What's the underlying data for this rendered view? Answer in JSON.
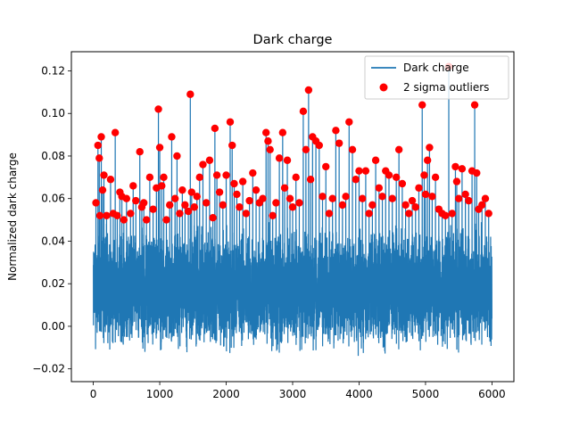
{
  "chart_data": {
    "type": "line",
    "title": "Dark charge",
    "xlabel": "",
    "ylabel": "Normalized dark charge",
    "xlim": [
      -330,
      6330
    ],
    "ylim": [
      -0.026,
      0.129
    ],
    "xticks": [
      0,
      1000,
      2000,
      3000,
      4000,
      5000,
      6000
    ],
    "xtick_labels": [
      "0",
      "1000",
      "2000",
      "3000",
      "4000",
      "5000",
      "6000"
    ],
    "yticks": [
      -0.02,
      0.0,
      0.02,
      0.04,
      0.06,
      0.08,
      0.1,
      0.12
    ],
    "ytick_labels": [
      "−0.02",
      "0.00",
      "0.02",
      "0.04",
      "0.06",
      "0.08",
      "0.10",
      "0.12"
    ],
    "grid": false,
    "legend_position": "top-right",
    "colors": {
      "line": "#1f77b4",
      "outliers": "#ff0000"
    },
    "series": [
      {
        "name": "Dark charge",
        "kind": "line",
        "n_points": 6000,
        "typical_range": [
          -0.01,
          0.045
        ],
        "x_range": [
          0,
          6000
        ]
      },
      {
        "name": "2 sigma outliers",
        "kind": "scatter",
        "points": [
          [
            40,
            0.058
          ],
          [
            70,
            0.085
          ],
          [
            90,
            0.079
          ],
          [
            100,
            0.052
          ],
          [
            120,
            0.089
          ],
          [
            140,
            0.064
          ],
          [
            160,
            0.071
          ],
          [
            200,
            0.052
          ],
          [
            260,
            0.069
          ],
          [
            300,
            0.053
          ],
          [
            330,
            0.091
          ],
          [
            360,
            0.052
          ],
          [
            400,
            0.063
          ],
          [
            430,
            0.061
          ],
          [
            460,
            0.05
          ],
          [
            500,
            0.06
          ],
          [
            560,
            0.053
          ],
          [
            600,
            0.066
          ],
          [
            640,
            0.059
          ],
          [
            700,
            0.082
          ],
          [
            730,
            0.056
          ],
          [
            760,
            0.058
          ],
          [
            800,
            0.05
          ],
          [
            850,
            0.07
          ],
          [
            900,
            0.055
          ],
          [
            950,
            0.065
          ],
          [
            980,
            0.102
          ],
          [
            1000,
            0.084
          ],
          [
            1030,
            0.066
          ],
          [
            1060,
            0.07
          ],
          [
            1100,
            0.05
          ],
          [
            1150,
            0.057
          ],
          [
            1180,
            0.089
          ],
          [
            1230,
            0.06
          ],
          [
            1260,
            0.08
          ],
          [
            1300,
            0.053
          ],
          [
            1340,
            0.064
          ],
          [
            1380,
            0.057
          ],
          [
            1430,
            0.054
          ],
          [
            1460,
            0.109
          ],
          [
            1480,
            0.063
          ],
          [
            1520,
            0.056
          ],
          [
            1560,
            0.061
          ],
          [
            1600,
            0.07
          ],
          [
            1650,
            0.076
          ],
          [
            1700,
            0.058
          ],
          [
            1750,
            0.078
          ],
          [
            1800,
            0.051
          ],
          [
            1830,
            0.093
          ],
          [
            1860,
            0.071
          ],
          [
            1900,
            0.063
          ],
          [
            1950,
            0.057
          ],
          [
            2000,
            0.071
          ],
          [
            2060,
            0.096
          ],
          [
            2090,
            0.085
          ],
          [
            2120,
            0.067
          ],
          [
            2160,
            0.062
          ],
          [
            2200,
            0.056
          ],
          [
            2250,
            0.068
          ],
          [
            2300,
            0.053
          ],
          [
            2350,
            0.059
          ],
          [
            2400,
            0.072
          ],
          [
            2450,
            0.064
          ],
          [
            2500,
            0.058
          ],
          [
            2550,
            0.06
          ],
          [
            2600,
            0.091
          ],
          [
            2630,
            0.087
          ],
          [
            2660,
            0.083
          ],
          [
            2700,
            0.052
          ],
          [
            2750,
            0.058
          ],
          [
            2800,
            0.079
          ],
          [
            2850,
            0.091
          ],
          [
            2880,
            0.065
          ],
          [
            2920,
            0.078
          ],
          [
            2960,
            0.06
          ],
          [
            3000,
            0.056
          ],
          [
            3050,
            0.07
          ],
          [
            3100,
            0.058
          ],
          [
            3160,
            0.101
          ],
          [
            3200,
            0.083
          ],
          [
            3240,
            0.111
          ],
          [
            3270,
            0.069
          ],
          [
            3300,
            0.089
          ],
          [
            3350,
            0.087
          ],
          [
            3400,
            0.085
          ],
          [
            3450,
            0.061
          ],
          [
            3500,
            0.075
          ],
          [
            3550,
            0.053
          ],
          [
            3600,
            0.06
          ],
          [
            3650,
            0.092
          ],
          [
            3700,
            0.086
          ],
          [
            3750,
            0.057
          ],
          [
            3800,
            0.061
          ],
          [
            3850,
            0.096
          ],
          [
            3900,
            0.083
          ],
          [
            3950,
            0.069
          ],
          [
            4000,
            0.073
          ],
          [
            4050,
            0.06
          ],
          [
            4100,
            0.073
          ],
          [
            4150,
            0.053
          ],
          [
            4200,
            0.057
          ],
          [
            4250,
            0.078
          ],
          [
            4300,
            0.065
          ],
          [
            4350,
            0.061
          ],
          [
            4400,
            0.073
          ],
          [
            4450,
            0.071
          ],
          [
            4500,
            0.06
          ],
          [
            4560,
            0.07
          ],
          [
            4600,
            0.083
          ],
          [
            4650,
            0.067
          ],
          [
            4700,
            0.057
          ],
          [
            4750,
            0.053
          ],
          [
            4800,
            0.059
          ],
          [
            4850,
            0.056
          ],
          [
            4900,
            0.065
          ],
          [
            4950,
            0.104
          ],
          [
            4980,
            0.071
          ],
          [
            5000,
            0.062
          ],
          [
            5030,
            0.078
          ],
          [
            5060,
            0.084
          ],
          [
            5100,
            0.061
          ],
          [
            5150,
            0.07
          ],
          [
            5200,
            0.055
          ],
          [
            5250,
            0.053
          ],
          [
            5300,
            0.052
          ],
          [
            5350,
            0.122
          ],
          [
            5400,
            0.053
          ],
          [
            5450,
            0.075
          ],
          [
            5470,
            0.068
          ],
          [
            5500,
            0.06
          ],
          [
            5550,
            0.074
          ],
          [
            5600,
            0.062
          ],
          [
            5650,
            0.059
          ],
          [
            5700,
            0.073
          ],
          [
            5740,
            0.104
          ],
          [
            5770,
            0.072
          ],
          [
            5800,
            0.055
          ],
          [
            5850,
            0.057
          ],
          [
            5900,
            0.06
          ],
          [
            5950,
            0.053
          ]
        ]
      }
    ]
  }
}
